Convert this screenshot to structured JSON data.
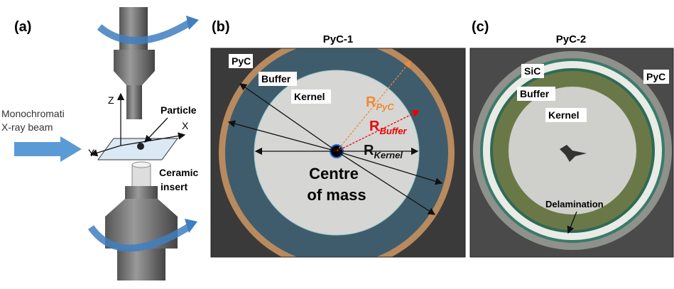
{
  "panel_a": {
    "label": "(a)",
    "beam": [
      "Monochromati",
      "X-ray beam"
    ],
    "axes": {
      "z": "Z",
      "x": "X",
      "y": "Y"
    },
    "particle": "Particle",
    "insert": [
      "Ceramic",
      "insert"
    ]
  },
  "panel_b": {
    "label": "(b)",
    "title": "PyC-1",
    "pyc": "PyC",
    "buffer": "Buffer",
    "kernel": "Kernel",
    "r_pyc": {
      "main": "R",
      "sub": "PyC"
    },
    "r_buffer": {
      "main": "R",
      "sub": "Buffer"
    },
    "r_kernel": {
      "main": "R",
      "sub": "Kernel"
    },
    "centre": [
      "Centre",
      "of mass"
    ]
  },
  "panel_c": {
    "label": "(c)",
    "title": "PyC-2",
    "sic": "SiC",
    "pyc": "PyC",
    "buffer": "Buffer",
    "kernel": "Kernel",
    "delamination": "Delamination"
  }
}
